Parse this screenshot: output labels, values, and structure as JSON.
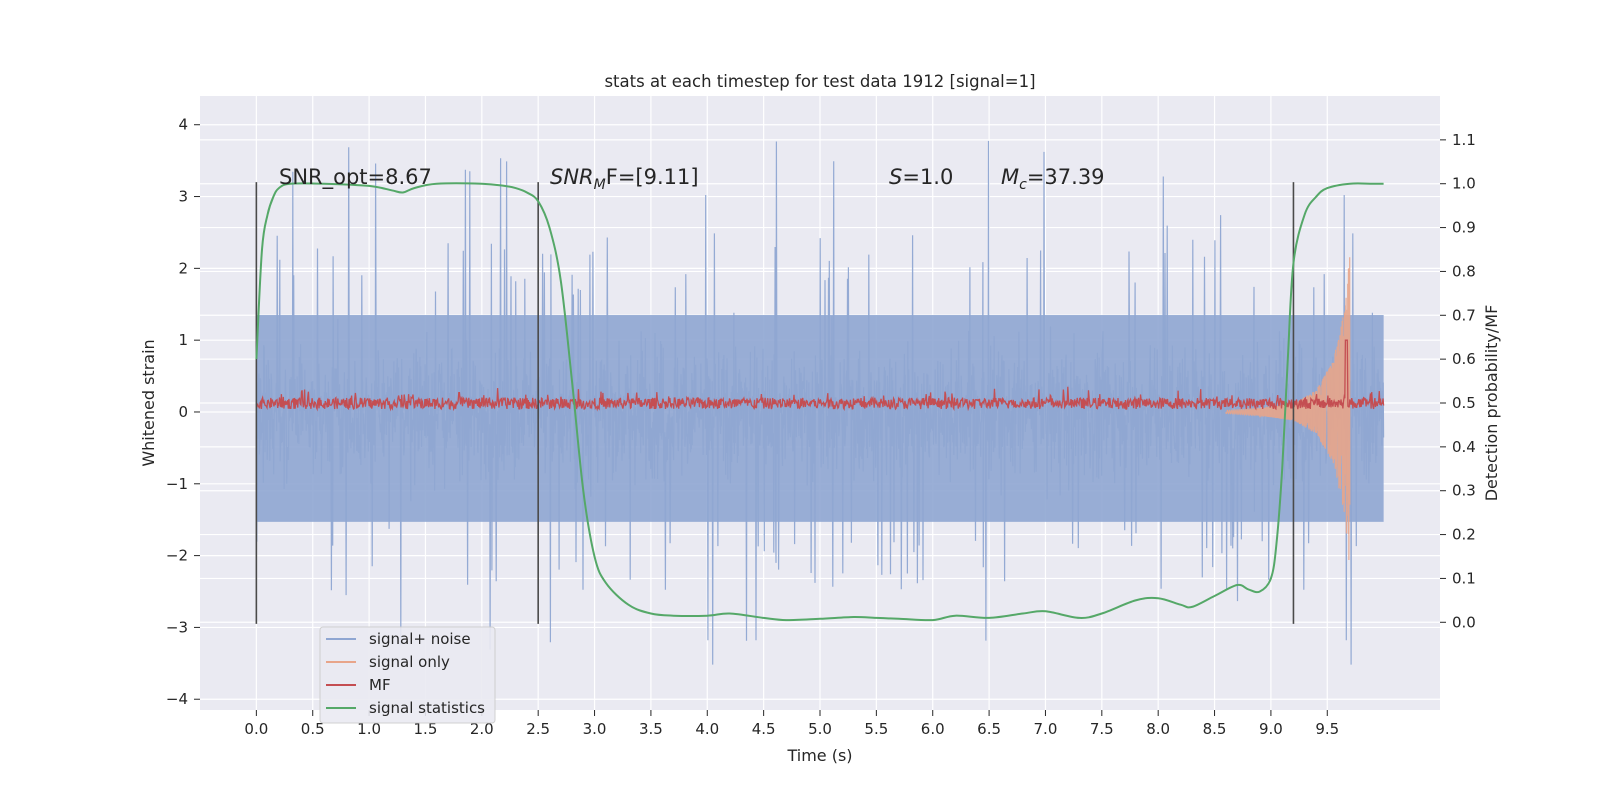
{
  "chart_data": {
    "type": "line",
    "title": "stats at each timestep for test data 1912 [signal=1]",
    "xlabel": "Time (s)",
    "ylabel": "Whitened strain",
    "ylabel_right": "Detection probability/MF",
    "xlim": [
      -0.5,
      10.5
    ],
    "ylim": [
      -4.15,
      4.4
    ],
    "ylim_right": [
      -0.2,
      1.2
    ],
    "x_ticks": [
      "0.0",
      "0.5",
      "1.0",
      "1.5",
      "2.0",
      "2.5",
      "3.0",
      "3.5",
      "4.0",
      "4.5",
      "5.0",
      "5.5",
      "6.0",
      "6.5",
      "7.0",
      "7.5",
      "8.0",
      "8.5",
      "9.0",
      "9.5"
    ],
    "y_ticks": [
      "4",
      "3",
      "2",
      "1",
      "0",
      "−1",
      "−2",
      "−3",
      "−4"
    ],
    "y_ticks_right": [
      "1.1",
      "1.0",
      "0.9",
      "0.8",
      "0.7",
      "0.6",
      "0.5",
      "0.4",
      "0.3",
      "0.2",
      "0.1",
      "0.0"
    ],
    "grid": true,
    "legend_position": "lower-left",
    "colors": {
      "background": "#eaeaf2",
      "signal_noise": "#8fa6d2",
      "signal_only": "#e8a58a",
      "mf": "#c44e52",
      "signal_statistics": "#55a868",
      "marker_lines": "#4a4a4a"
    },
    "series": [
      {
        "name": "signal+ noise",
        "axis": "left",
        "x_range": [
          0.0,
          10.0
        ],
        "typical_band": [
          -1.7,
          1.5
        ],
        "peak_range": [
          -3.7,
          4.0
        ]
      },
      {
        "name": "signal only",
        "axis": "left",
        "description_values": "chirp oscillation around 0 growing toward merger near t=9.7",
        "x": [
          8.6,
          8.9,
          9.2,
          9.4,
          9.55,
          9.65,
          9.7
        ],
        "amplitude": [
          0.02,
          0.05,
          0.12,
          0.3,
          0.7,
          1.4,
          2.2
        ]
      },
      {
        "name": "MF",
        "axis": "left",
        "x_range": [
          0.0,
          10.0
        ],
        "baseline": 0.12,
        "typical_band": [
          0.05,
          0.35
        ],
        "peak": {
          "x": 9.67,
          "y": 1.0
        }
      },
      {
        "name": "signal statistics",
        "axis": "right",
        "x": [
          0.0,
          0.05,
          0.1,
          0.15,
          0.2,
          0.3,
          0.6,
          1.0,
          1.2,
          1.3,
          1.4,
          1.6,
          2.0,
          2.2,
          2.3,
          2.4,
          2.5,
          2.6,
          2.7,
          2.8,
          2.9,
          3.0,
          3.1,
          3.3,
          3.5,
          3.7,
          4.0,
          4.2,
          4.5,
          4.7,
          5.0,
          5.3,
          5.5,
          5.7,
          6.0,
          6.2,
          6.5,
          6.8,
          7.0,
          7.3,
          7.5,
          7.8,
          8.0,
          8.2,
          8.3,
          8.5,
          8.7,
          8.8,
          8.9,
          9.0,
          9.05,
          9.1,
          9.15,
          9.2,
          9.3,
          9.4,
          9.5,
          9.7,
          9.9,
          10.0
        ],
        "values": [
          0.6,
          0.85,
          0.93,
          0.97,
          0.99,
          1.0,
          1.0,
          0.995,
          0.985,
          0.98,
          0.99,
          1.0,
          1.0,
          0.995,
          0.99,
          0.98,
          0.96,
          0.9,
          0.78,
          0.55,
          0.3,
          0.15,
          0.09,
          0.04,
          0.02,
          0.015,
          0.015,
          0.02,
          0.01,
          0.005,
          0.008,
          0.012,
          0.01,
          0.008,
          0.005,
          0.015,
          0.01,
          0.02,
          0.025,
          0.01,
          0.02,
          0.05,
          0.055,
          0.04,
          0.035,
          0.06,
          0.085,
          0.075,
          0.07,
          0.1,
          0.18,
          0.35,
          0.6,
          0.82,
          0.93,
          0.97,
          0.99,
          1.0,
          1.0,
          1.0
        ]
      }
    ],
    "vertical_lines": [
      {
        "x": 0.0,
        "y_range": [
          -2.95,
          3.2
        ]
      },
      {
        "x": 2.5,
        "y_range": [
          -2.95,
          3.2
        ]
      },
      {
        "x": 9.2,
        "y_range": [
          -2.95,
          3.2
        ]
      }
    ],
    "annotations": [
      {
        "id": "snr_opt",
        "text": "SNR_opt=8.67",
        "x": 0.2
      },
      {
        "id": "snr_mf",
        "text": "SNR_MF=[9.11]",
        "math": {
          "base": "SNR",
          "sub": "M",
          "tail": "F=[9.11]"
        },
        "x": 2.6
      },
      {
        "id": "s",
        "text": "S=1.0",
        "math": {
          "var": "S",
          "tail": "=1.0"
        },
        "x": 5.6
      },
      {
        "id": "mc",
        "text": "M_c=37.39",
        "math": {
          "var": "M",
          "sub": "c",
          "tail": "=37.39"
        },
        "x": 6.6
      }
    ]
  }
}
